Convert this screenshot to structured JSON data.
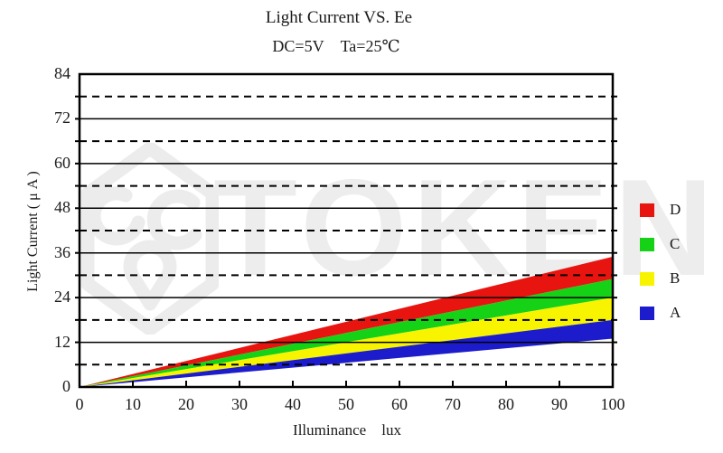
{
  "chart_data": {
    "type": "area",
    "title": "Light Current VS. Ee",
    "subtitle": "DC=5V Ta=25℃",
    "xlabel": "Illuminance lux",
    "ylabel": "Light Current ( μ A )",
    "xlim": [
      0,
      100
    ],
    "ylim": [
      0,
      84
    ],
    "x_ticks": [
      0,
      10,
      20,
      30,
      40,
      50,
      60,
      70,
      80,
      90,
      100
    ],
    "y_major_ticks": [
      0,
      12,
      24,
      36,
      48,
      60,
      72,
      84
    ],
    "grid": {
      "major_step": 12,
      "minor_step": 6,
      "major_style": "solid",
      "minor_style": "dashed"
    },
    "legend_position": "right",
    "series": [
      {
        "name": "D",
        "color": "#e81410",
        "x": [
          0,
          100
        ],
        "lower": [
          0,
          29
        ],
        "upper": [
          0,
          35
        ]
      },
      {
        "name": "C",
        "color": "#16d216",
        "x": [
          0,
          100
        ],
        "lower": [
          0,
          24
        ],
        "upper": [
          0,
          29
        ]
      },
      {
        "name": "B",
        "color": "#f8f400",
        "x": [
          0,
          100
        ],
        "lower": [
          0,
          18
        ],
        "upper": [
          0,
          24
        ]
      },
      {
        "name": "A",
        "color": "#1c1ccc",
        "x": [
          0,
          100
        ],
        "lower": [
          0,
          13
        ],
        "upper": [
          0,
          18
        ]
      }
    ]
  },
  "watermark": {
    "text": "TOKEN"
  },
  "colors": {
    "line": "#000000",
    "text": "#1a1a1a",
    "watermark": "#ededed"
  }
}
